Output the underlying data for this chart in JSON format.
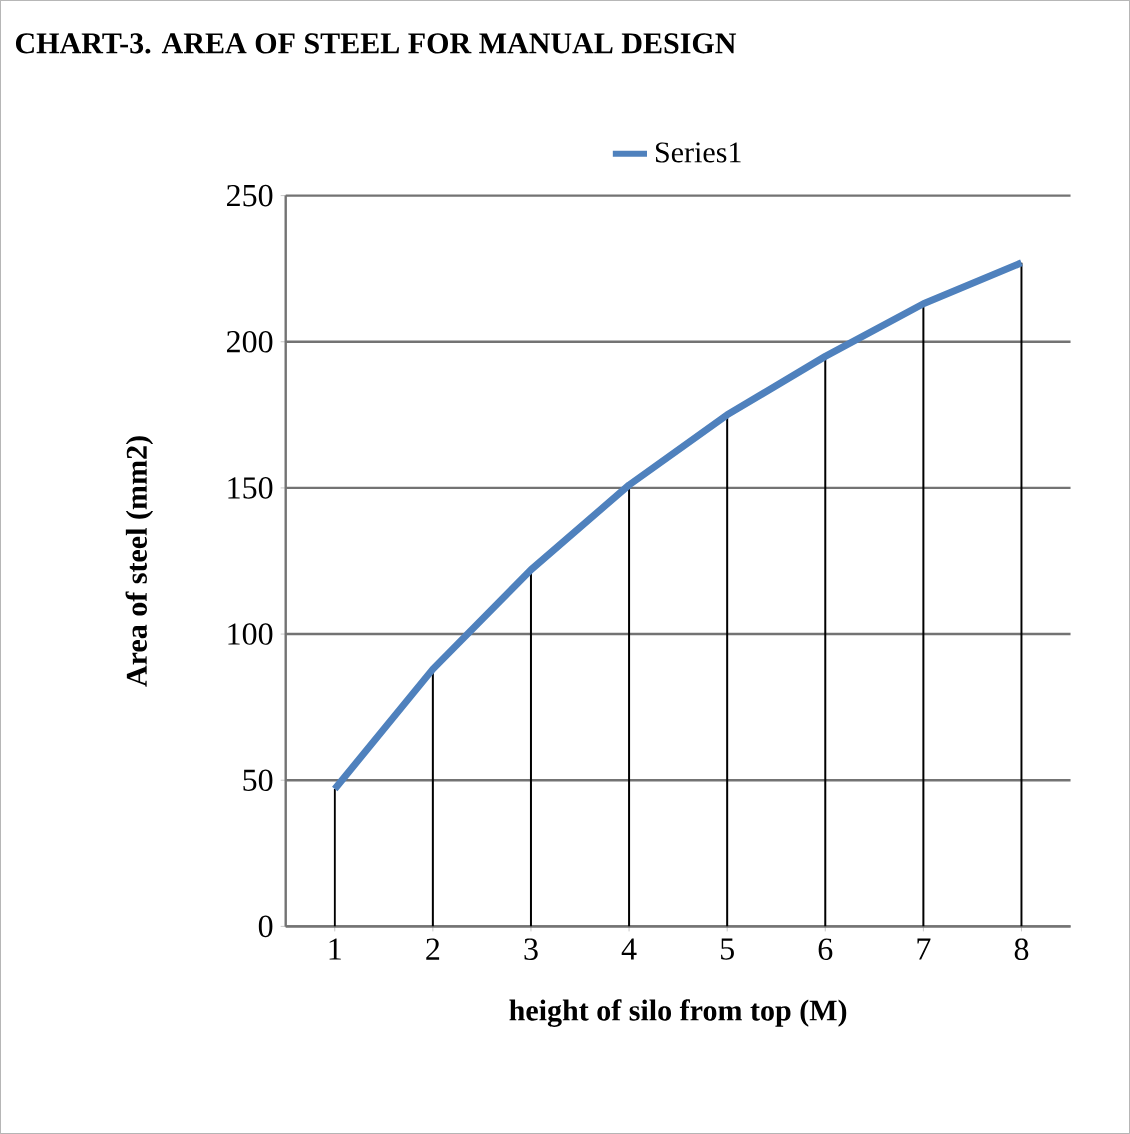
{
  "chart_data": {
    "type": "line",
    "title": "CHART-3. AREA OF STEEL FOR MANUAL DESIGN",
    "xlabel": "height of silo from top  (M)",
    "ylabel": "Area of steel (mm2)",
    "categories": [
      "1",
      "2",
      "3",
      "4",
      "5",
      "6",
      "7",
      "8"
    ],
    "series": [
      {
        "type": "bar",
        "color": "#000000",
        "values": [
          47,
          88,
          122,
          151,
          175,
          195,
          213,
          227
        ]
      },
      {
        "name": "Series1",
        "color": "#4f81bd",
        "values": [
          47,
          88,
          122,
          151,
          175,
          195,
          213,
          227
        ]
      }
    ],
    "ylim": [
      0,
      250
    ],
    "yticks": [
      0,
      50,
      100,
      150,
      200,
      250
    ],
    "grid": "y",
    "legend": "top"
  }
}
